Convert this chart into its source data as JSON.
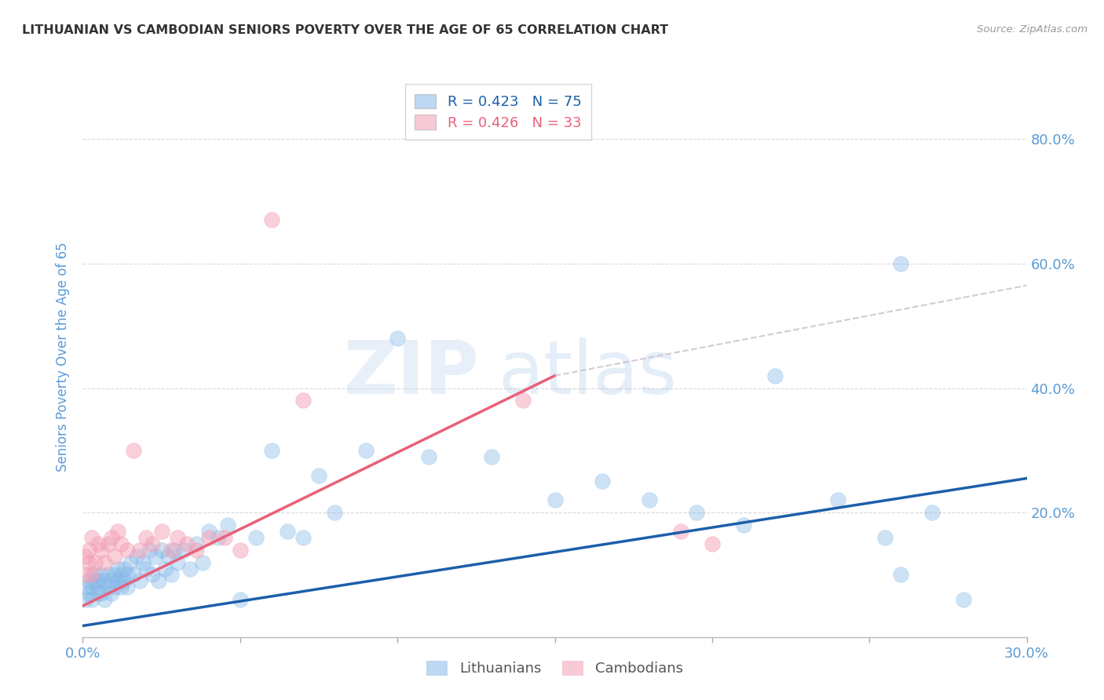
{
  "title": "LITHUANIAN VS CAMBODIAN SENIORS POVERTY OVER THE AGE OF 65 CORRELATION CHART",
  "source": "Source: ZipAtlas.com",
  "ylabel": "Seniors Poverty Over the Age of 65",
  "xlim": [
    0.0,
    0.3
  ],
  "ylim": [
    0.0,
    0.9
  ],
  "yticks": [
    0.0,
    0.2,
    0.4,
    0.6,
    0.8
  ],
  "ytick_labels": [
    "",
    "20.0%",
    "40.0%",
    "60.0%",
    "80.0%"
  ],
  "xticks": [
    0.0,
    0.05,
    0.1,
    0.15,
    0.2,
    0.25,
    0.3
  ],
  "xtick_labels": [
    "0.0%",
    "",
    "",
    "",
    "",
    "",
    "30.0%"
  ],
  "blue_R": "0.423",
  "blue_N": "75",
  "pink_R": "0.426",
  "pink_N": "33",
  "blue_color": "#85b8e8",
  "pink_color": "#f4a0b5",
  "blue_line_color": "#1c5faa",
  "pink_line_color": "#e8607a",
  "dashed_line_color": "#ccbbcc",
  "axis_color": "#5b9bd5",
  "title_color": "#333333",
  "bg_color": "#ffffff",
  "grid_color": "#d8d8d8",
  "watermark_zip": "ZIP",
  "watermark_atlas": "atlas",
  "lit_legend": "Lithuanians",
  "cam_legend": "Cambodians",
  "blue_line_x0": 0.0,
  "blue_line_y0": 0.018,
  "blue_line_x1": 0.3,
  "blue_line_y1": 0.255,
  "pink_line_x0": 0.0,
  "pink_line_y0": 0.05,
  "pink_line_x1": 0.15,
  "pink_line_y1": 0.42,
  "dashed_line_x0": 0.15,
  "dashed_line_y0": 0.42,
  "dashed_line_x1": 0.3,
  "dashed_line_y1": 0.565,
  "lit_x": [
    0.001,
    0.001,
    0.002,
    0.002,
    0.003,
    0.003,
    0.004,
    0.004,
    0.005,
    0.005,
    0.005,
    0.006,
    0.006,
    0.007,
    0.007,
    0.008,
    0.008,
    0.009,
    0.009,
    0.01,
    0.01,
    0.011,
    0.011,
    0.012,
    0.012,
    0.013,
    0.013,
    0.014,
    0.014,
    0.015,
    0.016,
    0.017,
    0.018,
    0.019,
    0.02,
    0.021,
    0.022,
    0.023,
    0.024,
    0.025,
    0.026,
    0.027,
    0.028,
    0.029,
    0.03,
    0.032,
    0.034,
    0.036,
    0.038,
    0.04,
    0.043,
    0.046,
    0.05,
    0.055,
    0.06,
    0.065,
    0.07,
    0.075,
    0.08,
    0.09,
    0.1,
    0.11,
    0.13,
    0.15,
    0.165,
    0.18,
    0.195,
    0.21,
    0.22,
    0.24,
    0.255,
    0.26,
    0.27,
    0.26,
    0.28
  ],
  "lit_y": [
    0.06,
    0.08,
    0.07,
    0.09,
    0.06,
    0.08,
    0.09,
    0.1,
    0.07,
    0.08,
    0.09,
    0.07,
    0.1,
    0.06,
    0.09,
    0.08,
    0.1,
    0.07,
    0.09,
    0.08,
    0.1,
    0.09,
    0.11,
    0.08,
    0.1,
    0.09,
    0.11,
    0.08,
    0.1,
    0.12,
    0.1,
    0.13,
    0.09,
    0.12,
    0.11,
    0.14,
    0.1,
    0.13,
    0.09,
    0.14,
    0.11,
    0.13,
    0.1,
    0.14,
    0.12,
    0.14,
    0.11,
    0.15,
    0.12,
    0.17,
    0.16,
    0.18,
    0.06,
    0.16,
    0.3,
    0.17,
    0.16,
    0.26,
    0.2,
    0.3,
    0.48,
    0.29,
    0.29,
    0.22,
    0.25,
    0.22,
    0.2,
    0.18,
    0.42,
    0.22,
    0.16,
    0.1,
    0.2,
    0.6,
    0.06
  ],
  "cam_x": [
    0.001,
    0.001,
    0.002,
    0.002,
    0.003,
    0.003,
    0.004,
    0.005,
    0.006,
    0.007,
    0.008,
    0.009,
    0.01,
    0.011,
    0.012,
    0.014,
    0.016,
    0.018,
    0.02,
    0.022,
    0.025,
    0.028,
    0.03,
    0.033,
    0.036,
    0.04,
    0.045,
    0.05,
    0.06,
    0.07,
    0.14,
    0.19,
    0.2
  ],
  "cam_y": [
    0.1,
    0.13,
    0.14,
    0.12,
    0.16,
    0.1,
    0.12,
    0.15,
    0.14,
    0.12,
    0.15,
    0.16,
    0.13,
    0.17,
    0.15,
    0.14,
    0.3,
    0.14,
    0.16,
    0.15,
    0.17,
    0.14,
    0.16,
    0.15,
    0.14,
    0.16,
    0.16,
    0.14,
    0.67,
    0.38,
    0.38,
    0.17,
    0.15
  ]
}
